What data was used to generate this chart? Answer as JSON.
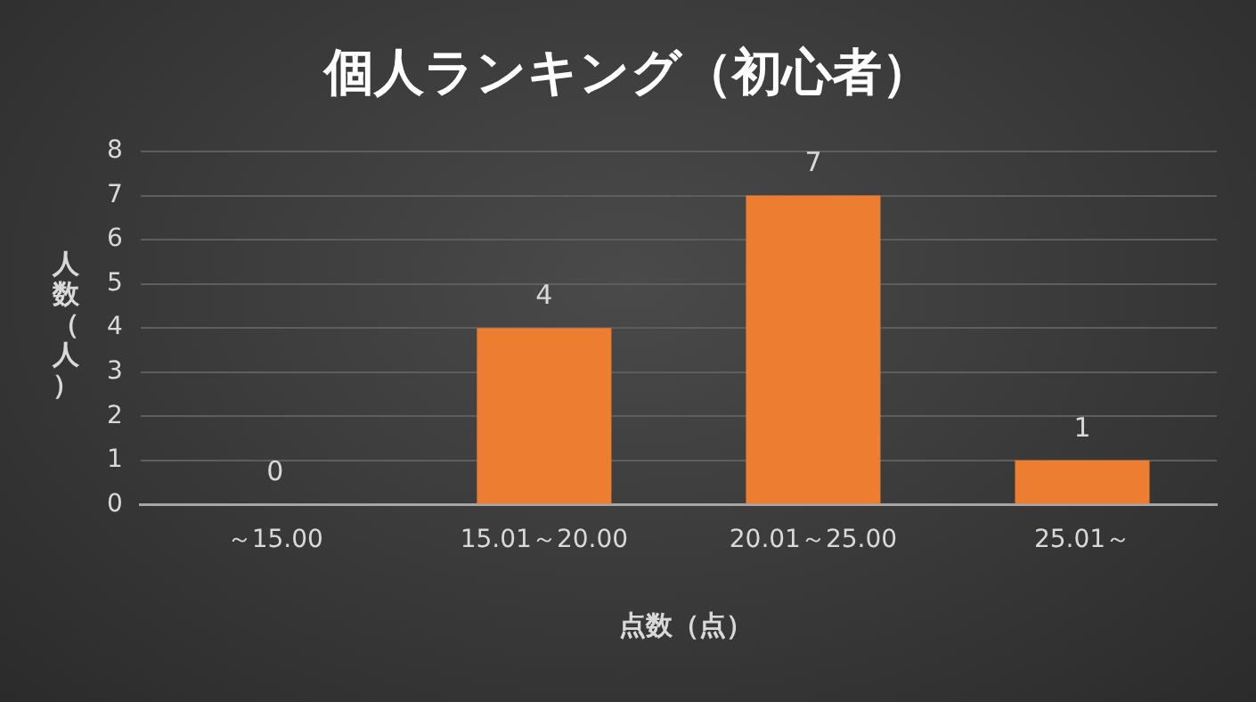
{
  "chart_data": {
    "type": "bar",
    "title": "個人ランキング（初心者）",
    "xlabel": "点数（点）",
    "ylabel": "人数（人）",
    "categories": [
      "～15.00",
      "15.01～20.00",
      "20.01～25.00",
      "25.01～"
    ],
    "values": [
      0,
      4,
      7,
      1
    ],
    "color": "#ed7d31",
    "ylim": [
      0,
      8
    ],
    "yticks": [
      0,
      1,
      2,
      3,
      4,
      5,
      6,
      7,
      8
    ],
    "grid": "y",
    "data_labels": true,
    "legend": false
  }
}
